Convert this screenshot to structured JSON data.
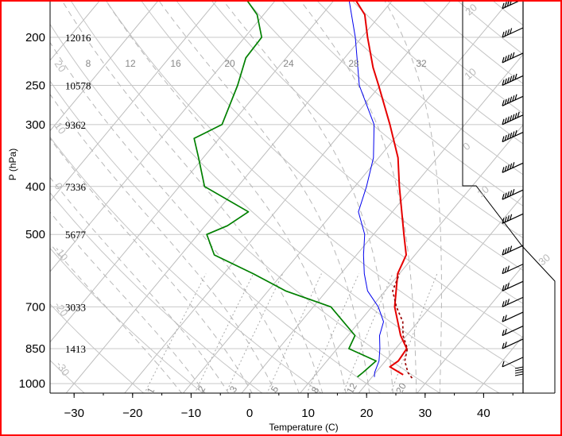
{
  "chart_data": {
    "type": "skew-t",
    "xlabel": "Temperature (C)",
    "ylabel": "P (hPa)",
    "xlim": [
      -33,
      47
    ],
    "x_ticks": [
      -30,
      -20,
      -10,
      0,
      10,
      20,
      30,
      40
    ],
    "x_tick_labels": [
      "−30",
      "−20",
      "−10",
      "0",
      "10",
      "20",
      "30",
      "40"
    ],
    "pressure_levels": [
      {
        "p": 200,
        "label": "200",
        "height": "12016"
      },
      {
        "p": 250,
        "label": "250",
        "height": "10578"
      },
      {
        "p": 300,
        "label": "300",
        "height": "9362"
      },
      {
        "p": 400,
        "label": "400",
        "height": "7336"
      },
      {
        "p": 500,
        "label": "500",
        "height": "5677"
      },
      {
        "p": 700,
        "label": "700",
        "height": "3033"
      },
      {
        "p": 850,
        "label": "850",
        "height": "1413"
      },
      {
        "p": 1000,
        "label": "1000",
        "height": ""
      }
    ],
    "mixing_ratio_labels": [
      "8",
      "12",
      "16",
      "20",
      "24",
      "28",
      "32"
    ],
    "bottom_ratio_labels": [
      "1",
      "2",
      "3",
      "5",
      "8",
      "12",
      "20"
    ],
    "adiabat_labels": [
      "20",
      "10",
      "0",
      "-10",
      "-20",
      "-30"
    ],
    "right_adiabat_labels": [
      "20",
      "10",
      "0",
      "10",
      "30"
    ],
    "series": [
      {
        "name": "temperature",
        "color": "#e60000",
        "points": [
          [
            960,
            25.0
          ],
          [
            925,
            21.6
          ],
          [
            900,
            22.2
          ],
          [
            850,
            21.9
          ],
          [
            800,
            19.0
          ],
          [
            700,
            13.9
          ],
          [
            600,
            9.7
          ],
          [
            550,
            8.5
          ],
          [
            500,
            5.2
          ],
          [
            400,
            -2.4
          ],
          [
            350,
            -6.7
          ],
          [
            300,
            -12.8
          ],
          [
            250,
            -20.3
          ],
          [
            230,
            -23.8
          ],
          [
            200,
            -29.0
          ],
          [
            180,
            -32.7
          ],
          [
            168,
            -36.4
          ]
        ]
      },
      {
        "name": "parcel",
        "color": "#990000",
        "points": [
          [
            975,
            27.0
          ],
          [
            950,
            25.5
          ],
          [
            900,
            23.3
          ],
          [
            850,
            22.0
          ],
          [
            800,
            19.4
          ],
          [
            750,
            17.4
          ],
          [
            700,
            14.2
          ],
          [
            650,
            11.3
          ],
          [
            600,
            10.0
          ]
        ]
      },
      {
        "name": "virtual temperature",
        "color": "#0000ee",
        "points": [
          [
            970,
            20.4
          ],
          [
            950,
            19.8
          ],
          [
            900,
            18.9
          ],
          [
            850,
            17.3
          ],
          [
            800,
            15.4
          ],
          [
            750,
            14.1
          ],
          [
            700,
            11.1
          ],
          [
            650,
            7.0
          ],
          [
            600,
            4.0
          ],
          [
            550,
            1.2
          ],
          [
            500,
            -1.5
          ],
          [
            450,
            -5.8
          ],
          [
            400,
            -8.0
          ],
          [
            350,
            -10.9
          ],
          [
            300,
            -15.5
          ],
          [
            250,
            -23.6
          ],
          [
            200,
            -31.1
          ],
          [
            168,
            -37.5
          ]
        ]
      },
      {
        "name": "dewpoint",
        "color": "#008000",
        "points": [
          [
            970,
            17.5
          ],
          [
            950,
            17.8
          ],
          [
            900,
            18.4
          ],
          [
            850,
            12.0
          ],
          [
            800,
            11.2
          ],
          [
            700,
            3.0
          ],
          [
            650,
            -7.0
          ],
          [
            600,
            -15.0
          ],
          [
            550,
            -24.3
          ],
          [
            500,
            -28.5
          ],
          [
            480,
            -26.2
          ],
          [
            450,
            -24.6
          ],
          [
            400,
            -35.7
          ],
          [
            350,
            -40.8
          ],
          [
            320,
            -44.3
          ],
          [
            300,
            -41.5
          ],
          [
            250,
            -44.4
          ],
          [
            220,
            -46.9
          ],
          [
            200,
            -47.1
          ],
          [
            180,
            -51.1
          ],
          [
            168,
            -55.0
          ]
        ]
      }
    ],
    "wind_barbs": [
      {
        "p": 175,
        "count": 4
      },
      {
        "p": 200,
        "count": 4
      },
      {
        "p": 225,
        "count": 5
      },
      {
        "p": 250,
        "count": 6
      },
      {
        "p": 275,
        "count": 6
      },
      {
        "p": 300,
        "count": 7
      },
      {
        "p": 325,
        "count": 6
      },
      {
        "p": 375,
        "count": 5
      },
      {
        "p": 425,
        "count": 5
      },
      {
        "p": 475,
        "count": 4
      },
      {
        "p": 550,
        "count": 4
      },
      {
        "p": 600,
        "count": 3
      },
      {
        "p": 650,
        "count": 3
      },
      {
        "p": 700,
        "count": 3
      },
      {
        "p": 750,
        "count": 2
      },
      {
        "p": 800,
        "count": 2
      },
      {
        "p": 850,
        "count": 2
      },
      {
        "p": 925,
        "count": 1
      }
    ],
    "grid": true
  }
}
